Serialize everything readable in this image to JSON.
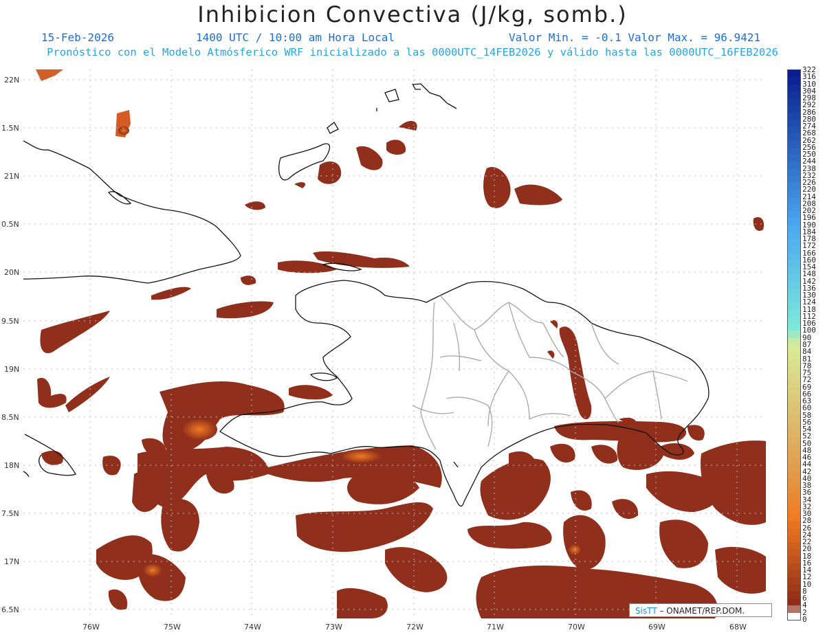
{
  "header": {
    "title": "Inhibicion Convectiva (J/kg, somb.)",
    "date": "15-Feb-2026",
    "time": "1400 UTC / 10:00 am Hora Local",
    "minmax": "Valor Min. = -0.1  Valor Max. = 96.9421",
    "model": "Pronóstico con el Modelo Atmósferico WRF inicializado a las 0000UTC_14FEB2026 y válido hasta las  0000UTC_16FEB2026"
  },
  "axes": {
    "lat_labels": [
      "22N",
      "1.5N",
      "21N",
      "0.5N",
      "20N",
      "9.5N",
      "19N",
      "8.5N",
      "18N",
      "7.5N",
      "17N",
      "6.5N"
    ],
    "lon_labels": [
      "76W",
      "75W",
      "74W",
      "73W",
      "72W",
      "71W",
      "70W",
      "69W",
      "68W"
    ]
  },
  "colorbar": {
    "labels": [
      "322",
      "316",
      "310",
      "304",
      "298",
      "292",
      "286",
      "280",
      "274",
      "268",
      "262",
      "256",
      "250",
      "244",
      "238",
      "232",
      "226",
      "220",
      "214",
      "208",
      "202",
      "196",
      "190",
      "184",
      "178",
      "172",
      "166",
      "160",
      "154",
      "148",
      "142",
      "136",
      "130",
      "124",
      "118",
      "112",
      "106",
      "100",
      "90",
      "87",
      "84",
      "81",
      "78",
      "75",
      "72",
      "69",
      "66",
      "63",
      "60",
      "58",
      "56",
      "54",
      "52",
      "50",
      "48",
      "46",
      "44",
      "42",
      "40",
      "38",
      "36",
      "34",
      "32",
      "30",
      "28",
      "26",
      "24",
      "22",
      "20",
      "18",
      "16",
      "14",
      "12",
      "10",
      "8",
      "6",
      "4",
      "2",
      "0"
    ],
    "colors": {
      "high": "#0a1f8f",
      "mid": "#4aa8f0",
      "low_cyan": "#7ee8d8",
      "yellow_green": "#d8ec9a",
      "orange": "#f07a20",
      "dark_red": "#8b2a18"
    }
  },
  "map": {
    "shade_color": "#8f2f1c",
    "shade_hot": "#e06a22",
    "coast_color": "#111111",
    "border_color": "#aaaaaa",
    "grid_color": "#bbbbbb"
  },
  "credit": {
    "sis": "SisTT",
    "org": "– ONAMET/REP.DOM."
  }
}
